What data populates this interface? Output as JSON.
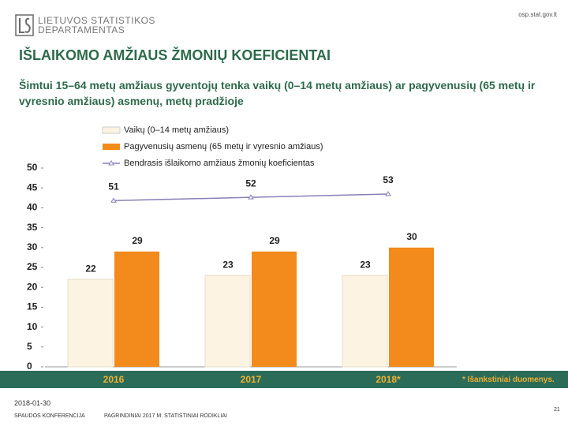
{
  "slide": {
    "logo_line1": "LIETUVOS STATISTIKOS",
    "logo_line2": "DEPARTAMENTAS",
    "url": "osp.stat.gov.lt",
    "date": "2018-01-30",
    "footer_left": "SPAUDOS KONFERENCIJA",
    "footer_center": "PAGRINDINIAI 2017 M. STATISTINIAI RODIKLIAI",
    "page": "21"
  },
  "chart_data": {
    "type": "bar",
    "title": "IŠLAIKOMO AMŽIAUS ŽMONIŲ KOEFICIENTAI",
    "subtitle": "Šimtui 15–64 metų amžiaus gyventojų tenka vaikų (0–14 metų amžiaus) ar pagyvenusių (65 metų ir vyresnio amžiaus) asmenų, metų pradžioje",
    "note": "* Išankstiniai duomenys.",
    "categories": [
      "2016",
      "2017",
      "2018*"
    ],
    "series": [
      {
        "name": "Vaikų (0–14 metų amžiaus)",
        "color": "#fdf3e3",
        "values": [
          22,
          23,
          23
        ]
      },
      {
        "name": "Pagyvenusių asmenų (65 metų ir vyresnio amžiaus)",
        "color": "#f28a1c",
        "values": [
          29,
          29,
          30
        ]
      },
      {
        "name": "Bendrasis išlaikomo amžiaus žmonių koeficientas",
        "type": "line",
        "axis": "y2",
        "color": "#8c7fb8",
        "values": [
          51,
          52,
          53
        ]
      }
    ],
    "ylim": [
      0,
      50
    ],
    "yticks": [
      0,
      5,
      10,
      15,
      20,
      25,
      30,
      35,
      40,
      45,
      50
    ],
    "y2lim": [
      0,
      61
    ]
  }
}
